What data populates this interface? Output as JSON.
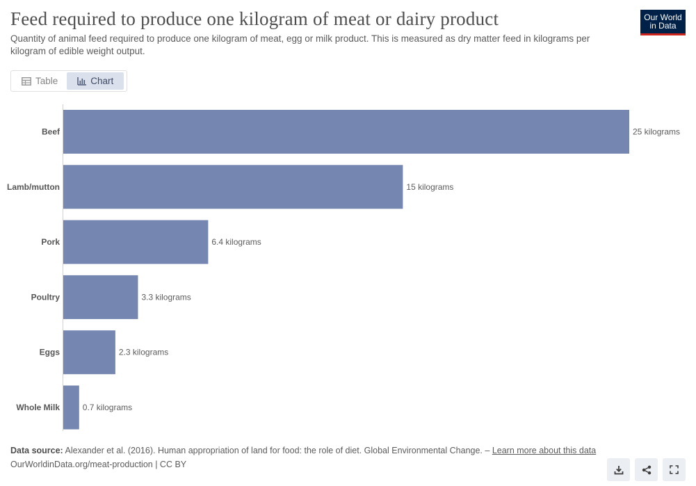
{
  "header": {
    "title": "Feed required to produce one kilogram of meat or dairy product",
    "subtitle": "Quantity of animal feed required to produce one kilogram of meat, egg or milk product. This is measured as dry matter feed in kilograms per kilogram of edible weight output.",
    "logo_line1": "Our World",
    "logo_line2": "in Data"
  },
  "tabs": [
    {
      "label": "Table",
      "icon": "table-icon",
      "active": false
    },
    {
      "label": "Chart",
      "icon": "chart-icon",
      "active": true
    }
  ],
  "chart_data": {
    "type": "bar",
    "orientation": "horizontal",
    "categories": [
      "Beef",
      "Lamb/mutton",
      "Pork",
      "Poultry",
      "Eggs",
      "Whole Milk"
    ],
    "values": [
      25,
      15,
      6.4,
      3.3,
      2.3,
      0.7
    ],
    "value_labels": [
      "25 kilograms",
      "15 kilograms",
      "6.4 kilograms",
      "3.3 kilograms",
      "2.3 kilograms",
      "0.7 kilograms"
    ],
    "unit": "kilograms",
    "xlim": [
      0,
      25
    ],
    "bar_color": "#7586b0",
    "grid": false
  },
  "footer": {
    "source_label": "Data source:",
    "source_text": "Alexander et al. (2016). Human appropriation of land for food: the role of diet. Global Environmental Change. –",
    "learn_more": "Learn more about this data",
    "url_line": "OurWorldinData.org/meat-production | CC BY"
  },
  "actions": [
    {
      "name": "download-icon"
    },
    {
      "name": "share-icon"
    },
    {
      "name": "fullscreen-icon"
    }
  ]
}
